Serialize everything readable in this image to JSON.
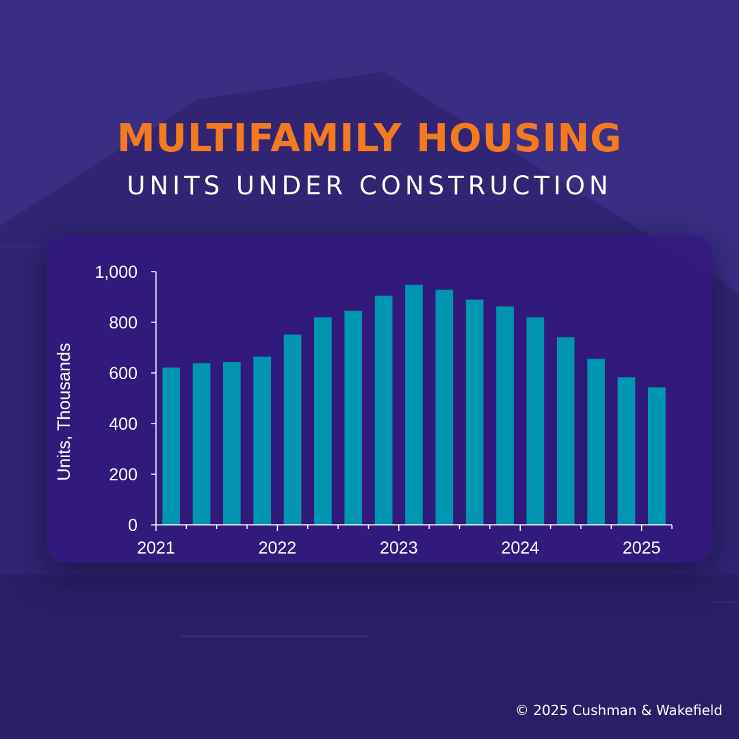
{
  "title": "MULTIFAMILY HOUSING",
  "subtitle": "UNITS UNDER CONSTRUCTION",
  "credit": "© 2025 Cushman & Wakefield",
  "colors": {
    "bar": "#0095b0",
    "title": "#f47a20",
    "panel": "#32187d",
    "axis": "#ffffff"
  },
  "chart_data": {
    "type": "bar",
    "title": "UNITS UNDER CONSTRUCTION",
    "xlabel": "",
    "ylabel": "Units, Thousands",
    "ylim": [
      0,
      1000
    ],
    "yticks": [
      0,
      200,
      400,
      600,
      800,
      1000
    ],
    "ytick_labels": [
      "0",
      "200",
      "400",
      "600",
      "800",
      "1,000"
    ],
    "x_tick_labels": [
      "2021",
      "2022",
      "2023",
      "2024",
      "2025"
    ],
    "categories": [
      "2021 Q1",
      "2021 Q2",
      "2021 Q3",
      "2021 Q4",
      "2022 Q1",
      "2022 Q2",
      "2022 Q3",
      "2022 Q4",
      "2023 Q1",
      "2023 Q2",
      "2023 Q3",
      "2023 Q4",
      "2024 Q1",
      "2024 Q2",
      "2024 Q3",
      "2024 Q4",
      "2025 Q1"
    ],
    "values": [
      621,
      638,
      643,
      664,
      752,
      820,
      846,
      905,
      948,
      928,
      890,
      863,
      820,
      741,
      655,
      583,
      543
    ],
    "grid": false,
    "legend": "none"
  }
}
